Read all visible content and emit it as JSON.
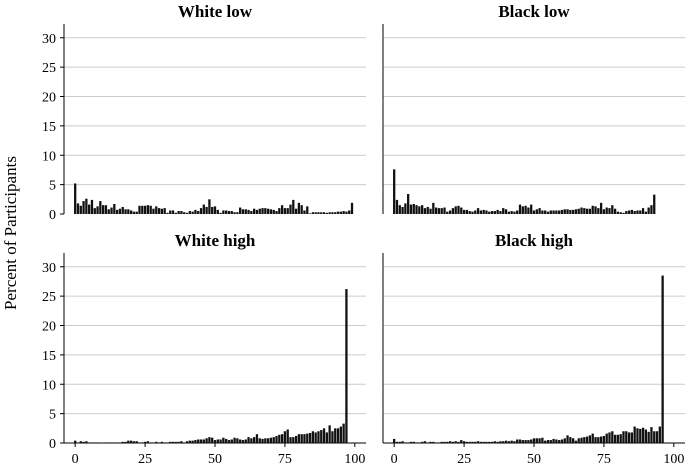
{
  "chart_data": {
    "type": "bar",
    "ylabel": "Percent of Participants",
    "xlabel": "",
    "ylim": [
      0,
      32
    ],
    "yticks": [
      0,
      5,
      10,
      15,
      20,
      25,
      30
    ],
    "xlim": [
      -4,
      104
    ],
    "xticks": [
      0,
      25,
      50,
      75,
      100
    ],
    "grid": true,
    "panels": [
      {
        "title": "White low",
        "x": [
          0,
          1,
          2,
          3,
          4,
          5,
          6,
          7,
          8,
          9,
          10,
          11,
          12,
          13,
          14,
          15,
          16,
          17,
          18,
          19,
          20,
          21,
          22,
          23,
          24,
          25,
          26,
          27,
          28,
          29,
          30,
          31,
          32,
          33,
          34,
          35,
          36,
          37,
          38,
          39,
          40,
          41,
          42,
          43,
          44,
          45,
          46,
          47,
          48,
          49,
          50,
          51,
          52,
          53,
          54,
          55,
          56,
          57,
          58,
          59,
          60,
          61,
          62,
          63,
          64,
          65,
          66,
          67,
          68,
          69,
          70,
          71,
          72,
          73,
          74,
          75,
          76,
          77,
          78,
          79,
          80,
          81,
          82,
          83,
          84,
          85,
          86,
          87,
          88,
          89,
          90,
          91,
          92,
          93,
          94,
          95,
          96,
          97,
          98,
          99,
          100
        ],
        "values": [
          5.2,
          1.8,
          1.4,
          2.2,
          2.6,
          1.6,
          2.4,
          1.0,
          1.3,
          2.2,
          1.5,
          1.5,
          0.8,
          1.1,
          1.7,
          0.7,
          0.9,
          1.2,
          0.8,
          0.8,
          0.6,
          0.4,
          0.4,
          1.4,
          1.4,
          1.4,
          1.5,
          1.4,
          0.9,
          1.3,
          1.0,
          0.9,
          1.0,
          0.2,
          0.6,
          0.6,
          0.2,
          0.5,
          0.5,
          0.3,
          0.2,
          0.5,
          0.4,
          0.7,
          0.5,
          1.0,
          1.6,
          1.2,
          2.5,
          1.2,
          1.3,
          0.7,
          0.2,
          0.6,
          0.6,
          0.5,
          0.5,
          0.3,
          0.3,
          1.1,
          0.8,
          0.8,
          0.7,
          0.5,
          0.9,
          0.7,
          0.9,
          1.0,
          1.0,
          0.9,
          0.8,
          0.7,
          0.5,
          1.0,
          1.5,
          1.0,
          1.0,
          1.6,
          2.4,
          0.9,
          1.9,
          1.5,
          0.6,
          1.3,
          0.1,
          0.3,
          0.3,
          0.3,
          0.3,
          0.3,
          0.2,
          0.3,
          0.3,
          0.3,
          0.4,
          0.4,
          0.5,
          0.4,
          0.6,
          1.9,
          0
        ]
      },
      {
        "title": "Black low",
        "x": [
          0,
          1,
          2,
          3,
          4,
          5,
          6,
          7,
          8,
          9,
          10,
          11,
          12,
          13,
          14,
          15,
          16,
          17,
          18,
          19,
          20,
          21,
          22,
          23,
          24,
          25,
          26,
          27,
          28,
          29,
          30,
          31,
          32,
          33,
          34,
          35,
          36,
          37,
          38,
          39,
          40,
          41,
          42,
          43,
          44,
          45,
          46,
          47,
          48,
          49,
          50,
          51,
          52,
          53,
          54,
          55,
          56,
          57,
          58,
          59,
          60,
          61,
          62,
          63,
          64,
          65,
          66,
          67,
          68,
          69,
          70,
          71,
          72,
          73,
          74,
          75,
          76,
          77,
          78,
          79,
          80,
          81,
          82,
          83,
          84,
          85,
          86,
          87,
          88,
          89,
          90,
          91,
          92,
          93,
          94,
          95,
          96,
          97,
          98,
          99,
          100
        ],
        "values": [
          7.6,
          2.4,
          1.5,
          1.2,
          1.8,
          3.4,
          1.6,
          1.7,
          1.5,
          1.3,
          1.5,
          1.0,
          1.2,
          0.9,
          1.9,
          1.1,
          1.0,
          1.0,
          1.1,
          0.4,
          0.6,
          1.0,
          1.3,
          1.4,
          1.1,
          0.7,
          0.7,
          0.5,
          0.4,
          0.6,
          1.0,
          0.6,
          0.7,
          0.6,
          0.4,
          0.5,
          0.5,
          0.7,
          0.5,
          1.0,
          0.8,
          0.4,
          0.5,
          0.4,
          0.6,
          1.6,
          1.3,
          1.4,
          1.1,
          1.6,
          0.6,
          0.8,
          1.0,
          0.6,
          0.6,
          0.4,
          0.6,
          0.6,
          0.6,
          0.6,
          0.7,
          0.8,
          0.8,
          0.7,
          0.7,
          0.8,
          0.9,
          1.1,
          1.0,
          0.9,
          0.9,
          1.4,
          1.3,
          1.0,
          1.9,
          0.8,
          1.1,
          1.0,
          1.5,
          0.9,
          0.4,
          0.3,
          0.2,
          0.5,
          0.6,
          0.7,
          0.5,
          0.6,
          0.6,
          1.0,
          0.4,
          1.1,
          1.5,
          3.3,
          0,
          0,
          0,
          0,
          0,
          0,
          0
        ]
      },
      {
        "title": "White high",
        "x": [
          0,
          1,
          2,
          3,
          4,
          5,
          6,
          7,
          8,
          9,
          10,
          11,
          12,
          13,
          14,
          15,
          16,
          17,
          18,
          19,
          20,
          21,
          22,
          23,
          24,
          25,
          26,
          27,
          28,
          29,
          30,
          31,
          32,
          33,
          34,
          35,
          36,
          37,
          38,
          39,
          40,
          41,
          42,
          43,
          44,
          45,
          46,
          47,
          48,
          49,
          50,
          51,
          52,
          53,
          54,
          55,
          56,
          57,
          58,
          59,
          60,
          61,
          62,
          63,
          64,
          65,
          66,
          67,
          68,
          69,
          70,
          71,
          72,
          73,
          74,
          75,
          76,
          77,
          78,
          79,
          80,
          81,
          82,
          83,
          84,
          85,
          86,
          87,
          88,
          89,
          90,
          91,
          92,
          93,
          94,
          95,
          96,
          97,
          98,
          99,
          100
        ],
        "values": [
          0.4,
          0.1,
          0.3,
          0.2,
          0.3,
          0.1,
          0.1,
          0.1,
          0.1,
          0,
          0,
          0.1,
          0.1,
          0.1,
          0.1,
          0,
          0.1,
          0.2,
          0.2,
          0.4,
          0.4,
          0.3,
          0.3,
          0.1,
          0.1,
          0.2,
          0.3,
          0.1,
          0.1,
          0.2,
          0.1,
          0.2,
          0.1,
          0.1,
          0.2,
          0.2,
          0.2,
          0.2,
          0.3,
          0.1,
          0.3,
          0.4,
          0.4,
          0.5,
          0.6,
          0.6,
          0.6,
          0.8,
          1.0,
          0.9,
          0.5,
          0.6,
          0.6,
          0.9,
          0.7,
          0.5,
          0.6,
          0.9,
          0.8,
          0.6,
          0.5,
          0.6,
          1.0,
          0.8,
          1.0,
          1.5,
          0.8,
          0.7,
          0.8,
          0.8,
          0.9,
          1.0,
          1.2,
          1.4,
          1.5,
          2.0,
          2.3,
          1.0,
          1.0,
          1.2,
          1.5,
          1.5,
          1.5,
          1.6,
          1.7,
          2.0,
          1.8,
          2.0,
          2.2,
          2.5,
          1.8,
          3.0,
          2.0,
          2.5,
          2.5,
          2.8,
          3.3,
          26.2,
          0,
          0,
          0
        ]
      },
      {
        "title": "Black high",
        "x": [
          0,
          1,
          2,
          3,
          4,
          5,
          6,
          7,
          8,
          9,
          10,
          11,
          12,
          13,
          14,
          15,
          16,
          17,
          18,
          19,
          20,
          21,
          22,
          23,
          24,
          25,
          26,
          27,
          28,
          29,
          30,
          31,
          32,
          33,
          34,
          35,
          36,
          37,
          38,
          39,
          40,
          41,
          42,
          43,
          44,
          45,
          46,
          47,
          48,
          49,
          50,
          51,
          52,
          53,
          54,
          55,
          56,
          57,
          58,
          59,
          60,
          61,
          62,
          63,
          64,
          65,
          66,
          67,
          68,
          69,
          70,
          71,
          72,
          73,
          74,
          75,
          76,
          77,
          78,
          79,
          80,
          81,
          82,
          83,
          84,
          85,
          86,
          87,
          88,
          89,
          90,
          91,
          92,
          93,
          94,
          95,
          96,
          97,
          98,
          99,
          100
        ],
        "values": [
          0.7,
          0.2,
          0.2,
          0.3,
          0.1,
          0.1,
          0.2,
          0.2,
          0.1,
          0.1,
          0.2,
          0.3,
          0.1,
          0.2,
          0.2,
          0.1,
          0.1,
          0.2,
          0.2,
          0.2,
          0.3,
          0.2,
          0.3,
          0.2,
          0.5,
          0.3,
          0.2,
          0.2,
          0.2,
          0.2,
          0.3,
          0.2,
          0.2,
          0.2,
          0.2,
          0.2,
          0.3,
          0.2,
          0.3,
          0.3,
          0.4,
          0.3,
          0.4,
          0.3,
          0.6,
          0.6,
          0.5,
          0.5,
          0.5,
          0.6,
          0.8,
          0.8,
          0.8,
          0.9,
          0.4,
          0.5,
          0.5,
          0.7,
          0.6,
          0.5,
          0.6,
          0.8,
          1.3,
          1.0,
          0.8,
          0.4,
          0.8,
          0.9,
          1.0,
          1.1,
          1.3,
          1.6,
          1.0,
          1.0,
          1.1,
          1.2,
          1.6,
          1.8,
          2.0,
          1.4,
          1.4,
          1.5,
          2.0,
          2.0,
          1.8,
          1.8,
          2.8,
          2.5,
          2.4,
          2.6,
          2.3,
          1.9,
          2.7,
          2.0,
          2.0,
          2.8,
          28.5,
          0,
          0,
          0,
          0
        ]
      }
    ]
  }
}
